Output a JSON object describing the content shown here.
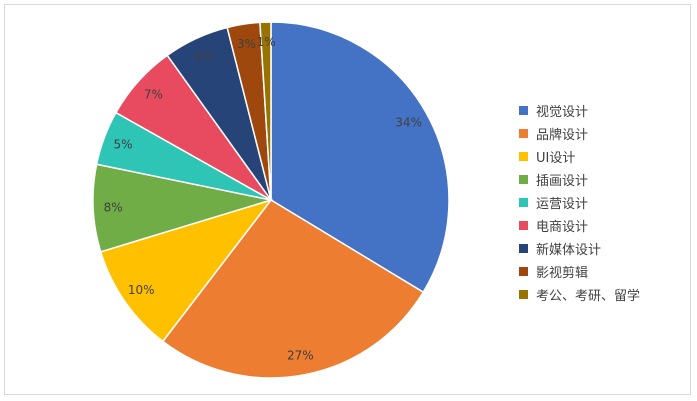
{
  "chart_data": {
    "type": "pie",
    "categories": [
      "视觉设计",
      "品牌设计",
      "UI设计",
      "插画设计",
      "运营设计",
      "电商设计",
      "新媒体设计",
      "影视剪辑",
      "考公、考研、留学"
    ],
    "values": [
      34,
      27,
      10,
      8,
      5,
      7,
      6,
      3,
      1
    ],
    "data_labels": [
      "34%",
      "27%",
      "10%",
      "8%",
      "5%",
      "7%",
      "6%",
      "3%",
      "1%"
    ],
    "colors": [
      "#4472c4",
      "#ed7d31",
      "#ffc000",
      "#70ad47",
      "#2ec4b6",
      "#e84a5f",
      "#264478",
      "#9e480e",
      "#997300"
    ],
    "legend_position": "right",
    "start_angle": "12 o'clock",
    "direction": "clockwise"
  }
}
